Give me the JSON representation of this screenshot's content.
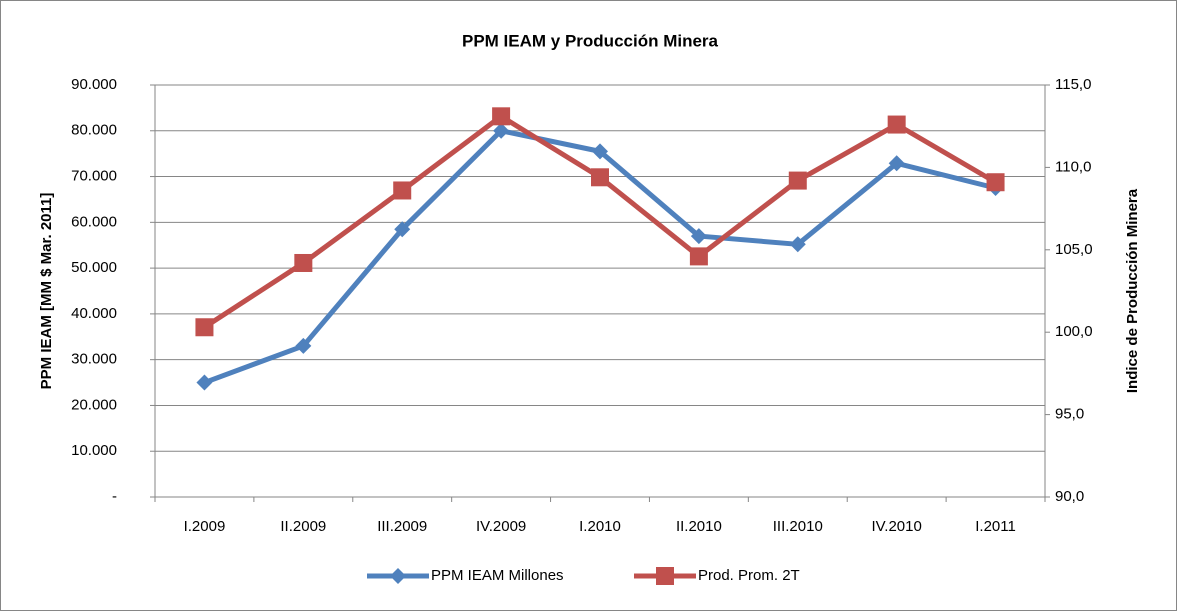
{
  "chart_data": {
    "type": "line",
    "title": "PPM IEAM y Producción Minera",
    "y_label": "PPM IEAM [MM $ Mar. 2011]",
    "y2_label": "Indice de Producción Minera",
    "categories": [
      "I.2009",
      "II.2009",
      "III.2009",
      "IV.2009",
      "I.2010",
      "II.2010",
      "III.2010",
      "IV.2010",
      "I.2011"
    ],
    "series": [
      {
        "name": "PPM IEAM Millones",
        "color": "#4f81bd",
        "marker": "diamond",
        "values": [
          25000,
          33000,
          58500,
          80000,
          75500,
          57000,
          55200,
          72900,
          67500
        ]
      },
      {
        "name": "Prod. Prom. 2T",
        "color": "#c0504d",
        "marker": "square",
        "axis": "y2",
        "values": [
          100.3,
          104.2,
          108.6,
          113.1,
          109.4,
          104.6,
          109.2,
          112.6,
          109.1
        ]
      }
    ],
    "ylim": [
      0,
      90000
    ],
    "yticks": [
      {
        "value": 0,
        "label": "-"
      },
      {
        "value": 10000,
        "label": "10.000"
      },
      {
        "value": 20000,
        "label": "20.000"
      },
      {
        "value": 30000,
        "label": "30.000"
      },
      {
        "value": 40000,
        "label": "40.000"
      },
      {
        "value": 50000,
        "label": "50.000"
      },
      {
        "value": 60000,
        "label": "60.000"
      },
      {
        "value": 70000,
        "label": "70.000"
      },
      {
        "value": 80000,
        "label": "80.000"
      },
      {
        "value": 90000,
        "label": "90.000"
      }
    ],
    "y2lim": [
      90,
      115
    ],
    "y2ticks": [
      {
        "value": 90,
        "label": "90,0"
      },
      {
        "value": 95,
        "label": "95,0"
      },
      {
        "value": 100,
        "label": "100,0"
      },
      {
        "value": 105,
        "label": "105,0"
      },
      {
        "value": 110,
        "label": "110,0"
      },
      {
        "value": 115,
        "label": "115,0"
      }
    ],
    "grid": true,
    "legend": "bottom"
  }
}
